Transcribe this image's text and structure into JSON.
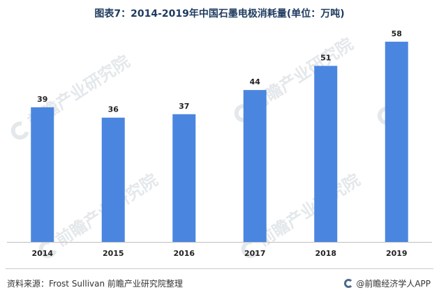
{
  "header": {
    "title": "图表7：2014-2019年中国石墨电极消耗量(单位：万吨)"
  },
  "chart_data": {
    "type": "bar",
    "categories": [
      "2014",
      "2015",
      "2016",
      "2017",
      "2018",
      "2019"
    ],
    "values": [
      39,
      36,
      37,
      44,
      51,
      58
    ],
    "title": "图表7：2014-2019年中国石墨电极消耗量(单位：万吨)",
    "xlabel": "",
    "ylabel": "",
    "ylim": [
      0,
      62
    ],
    "grid": false,
    "bar_color": "#4a86df",
    "data_labels": true
  },
  "watermark": {
    "text": "前瞻产业研究院"
  },
  "footer": {
    "source": "资料来源：Frost Sullivan  前瞻产业研究院整理",
    "brand": "@前瞻经济学人APP"
  }
}
